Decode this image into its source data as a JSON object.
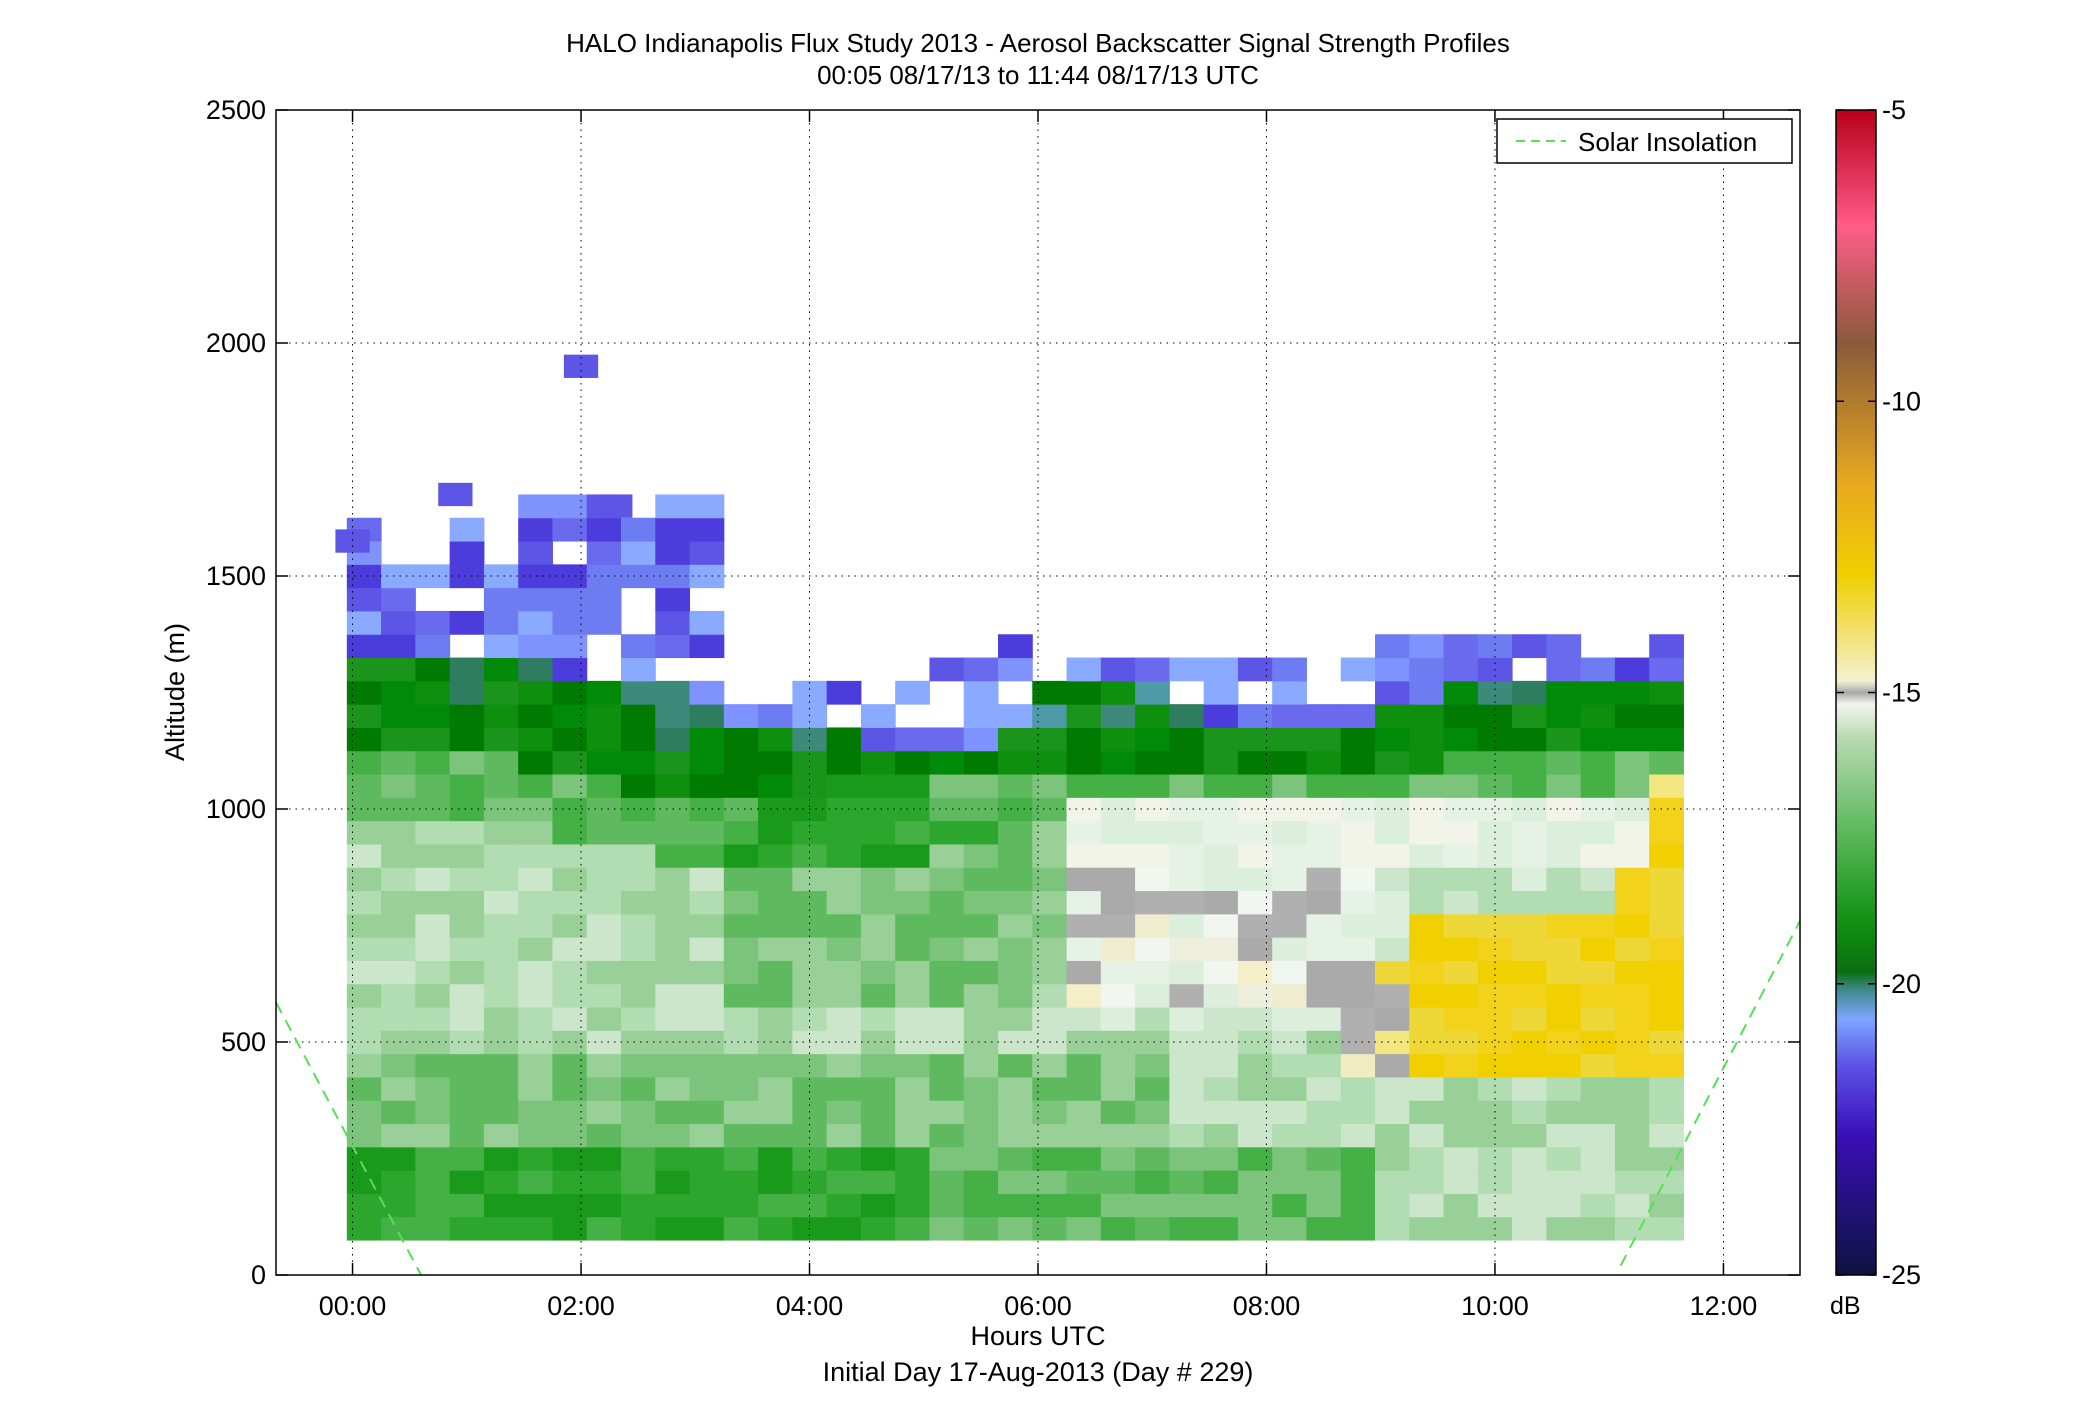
{
  "chart_data": {
    "type": "heatmap",
    "title": "HALO Indianapolis Flux Study 2013 - Aerosol Backscatter Signal Strength Profiles",
    "subtitle": "00:05 08/17/13 to 11:44 08/17/13  UTC",
    "xlabel": "Hours UTC",
    "xlabel2": "Initial Day 17-Aug-2013 (Day # 229)",
    "ylabel": "Altitude (m)",
    "xlim": [
      -0.67,
      12.67
    ],
    "ylim": [
      0,
      2500
    ],
    "x_ticks": [
      0,
      2,
      4,
      6,
      8,
      10,
      12
    ],
    "x_tick_labels": [
      "00:00",
      "02:00",
      "04:00",
      "06:00",
      "08:00",
      "10:00",
      "12:00"
    ],
    "y_ticks": [
      0,
      500,
      1000,
      1500,
      2000,
      2500
    ],
    "y_tick_labels": [
      "0",
      "500",
      "1000",
      "1500",
      "2000",
      "2500"
    ],
    "grid": true,
    "legend": {
      "position": "top-right",
      "entries": [
        "Solar Insolation"
      ]
    },
    "colorbar": {
      "unit": "dB",
      "range": [
        -25,
        -5
      ],
      "ticks": [
        -25,
        -20,
        -15,
        -10,
        -5
      ],
      "tick_labels": [
        "-25",
        "-20",
        "-15",
        "-10",
        "-5"
      ]
    },
    "cell_width_hours": 0.3,
    "cell_height_m": 50,
    "time_start_hours": 0.1,
    "altitude_start_m": 75,
    "columns": [
      {
        "t": 0.1,
        "top": 1600,
        "under": 1300,
        "pbl": 1100,
        "ml": 530,
        "nf": 1
      },
      {
        "t": 0.4,
        "top": 1500,
        "under": 1300,
        "pbl": 1110,
        "ml": 520,
        "nf": 1
      },
      {
        "t": 0.7,
        "top": 1500,
        "under": 1290,
        "pbl": 1110,
        "ml": 560,
        "nf": 1
      },
      {
        "t": 1.0,
        "top": 1600,
        "under": 1300,
        "pbl": 1110,
        "ml": 580,
        "nf": 0
      },
      {
        "t": 1.3,
        "top": 1500,
        "under": 1280,
        "pbl": 1100,
        "ml": 570,
        "nf": 0
      },
      {
        "t": 1.6,
        "top": 1650,
        "under": 1280,
        "pbl": 1080,
        "ml": 560,
        "nf": 0
      },
      {
        "t": 1.9,
        "top": 1650,
        "under": 1250,
        "pbl": 1060,
        "ml": 550,
        "nf": 0
      },
      {
        "t": 2.2,
        "top": 1700,
        "under": 1260,
        "pbl": 1040,
        "ml": 540,
        "nf": 0
      },
      {
        "t": 2.5,
        "top": 1650,
        "under": 1230,
        "pbl": 1030,
        "ml": 560,
        "nf": 0
      },
      {
        "t": 2.8,
        "top": 1650,
        "under": 1230,
        "pbl": 1010,
        "ml": 560,
        "nf": 0
      },
      {
        "t": 3.1,
        "top": 1650,
        "under": 1190,
        "pbl": 1010,
        "ml": 550,
        "nf": 0
      },
      {
        "t": 3.4,
        "top": 1200,
        "under": 1150,
        "pbl": 1010,
        "ml": 560,
        "nf": 0
      },
      {
        "t": 3.7,
        "top": 1200,
        "under": 1150,
        "pbl": 1030,
        "ml": 570,
        "nf": 0
      },
      {
        "t": 4.0,
        "top": 1250,
        "under": 1150,
        "pbl": 1030,
        "ml": 570,
        "nf": 1
      },
      {
        "t": 4.3,
        "top": 1250,
        "under": 1130,
        "pbl": 1050,
        "ml": 560,
        "nf": 1
      },
      {
        "t": 4.6,
        "top": 1200,
        "under": 1100,
        "pbl": 1050,
        "ml": 560,
        "nf": 0
      },
      {
        "t": 4.9,
        "top": 1250,
        "under": 1100,
        "pbl": 1050,
        "ml": 600,
        "nf": 0
      },
      {
        "t": 5.2,
        "top": 1300,
        "under": 1100,
        "pbl": 1050,
        "ml": 620,
        "nf": 0
      },
      {
        "t": 5.5,
        "top": 1300,
        "under": 1100,
        "pbl": 1050,
        "ml": 600,
        "nf": 0
      },
      {
        "t": 5.8,
        "top": 1350,
        "under": 1150,
        "pbl": 1080,
        "ml": 620,
        "nf": 0
      },
      {
        "t": 6.1,
        "top": 1350,
        "under": 1250,
        "pbl": 1080,
        "ml": 680,
        "nf": 0
      },
      {
        "t": 6.4,
        "top": 1300,
        "under": 1250,
        "pbl": 1050,
        "ml": 700,
        "nf": 0
      },
      {
        "t": 6.7,
        "top": 1300,
        "under": 1250,
        "pbl": 1050,
        "ml": 750,
        "nf": 0
      },
      {
        "t": 7.0,
        "top": 1300,
        "under": 1250,
        "pbl": 1050,
        "ml": 760,
        "nf": 0
      },
      {
        "t": 7.3,
        "top": 1300,
        "under": 1200,
        "pbl": 1050,
        "ml": 760,
        "nf": 0
      },
      {
        "t": 7.6,
        "top": 1300,
        "under": 1150,
        "pbl": 1050,
        "ml": 760,
        "nf": 0
      },
      {
        "t": 7.9,
        "top": 1350,
        "under": 1150,
        "pbl": 1050,
        "ml": 760,
        "nf": 0
      },
      {
        "t": 8.2,
        "top": 1300,
        "under": 1150,
        "pbl": 1050,
        "ml": 760,
        "nf": 0
      },
      {
        "t": 8.5,
        "top": 1300,
        "under": 1150,
        "pbl": 1050,
        "ml": 760,
        "nf": 0
      },
      {
        "t": 8.8,
        "top": 1300,
        "under": 1150,
        "pbl": 1050,
        "ml": 760,
        "nf": 0
      },
      {
        "t": 9.1,
        "top": 1350,
        "under": 1200,
        "pbl": 1070,
        "ml": 760,
        "nf": 0
      },
      {
        "t": 9.4,
        "top": 1350,
        "under": 1200,
        "pbl": 1080,
        "ml": 760,
        "nf": 0
      },
      {
        "t": 9.7,
        "top": 1350,
        "under": 1250,
        "pbl": 1100,
        "ml": 760,
        "nf": 0
      },
      {
        "t": 10.0,
        "top": 1350,
        "under": 1250,
        "pbl": 1120,
        "ml": 760,
        "nf": 0
      },
      {
        "t": 10.3,
        "top": 1350,
        "under": 1250,
        "pbl": 1130,
        "ml": 760,
        "nf": 0
      },
      {
        "t": 10.6,
        "top": 1350,
        "under": 1250,
        "pbl": 1130,
        "ml": 760,
        "nf": 0
      },
      {
        "t": 10.9,
        "top": 1300,
        "under": 1250,
        "pbl": 1130,
        "ml": 760,
        "nf": 0
      },
      {
        "t": 11.2,
        "top": 1300,
        "under": 1250,
        "pbl": 1130,
        "ml": 760,
        "nf": 0
      },
      {
        "t": 11.5,
        "top": 1350,
        "under": 1250,
        "pbl": 1130,
        "ml": 760,
        "nf": 0
      }
    ],
    "solar_insolation": {
      "left": [
        [
          -0.67,
          585
        ],
        [
          0.6,
          0
        ]
      ],
      "right": [
        [
          11.1,
          20
        ],
        [
          12.67,
          760
        ]
      ]
    }
  }
}
